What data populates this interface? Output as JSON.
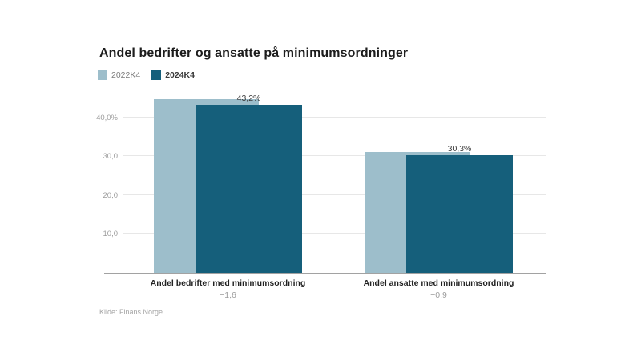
{
  "source": "Kilde: Finans Norge",
  "chart_data": {
    "type": "bar",
    "variant": "overlapping-columns",
    "title": "Andel bedrifter og ansatte på minimumsordninger",
    "categories": [
      "Andel bedrifter med minimumsordning",
      "Andel ansatte med minimumsordning"
    ],
    "series": [
      {
        "name": "2022K4",
        "color": "#9dbecb",
        "values": [
          44.8,
          31.2
        ]
      },
      {
        "name": "2024K4",
        "color": "#155f7b",
        "values": [
          43.2,
          30.3
        ],
        "value_labels": [
          "43,2%",
          "30,3%"
        ]
      }
    ],
    "change_labels": [
      "−1,6",
      "−0,9"
    ],
    "y_ticks": [
      {
        "value": 40,
        "label": "40,0%"
      },
      {
        "value": 30,
        "label": "30,0"
      },
      {
        "value": 20,
        "label": "20,0"
      },
      {
        "value": 10,
        "label": "10,0"
      }
    ],
    "ylim": [
      0,
      47.2
    ],
    "grid": true,
    "legend_position": "top-left",
    "value_suffix": "%"
  }
}
